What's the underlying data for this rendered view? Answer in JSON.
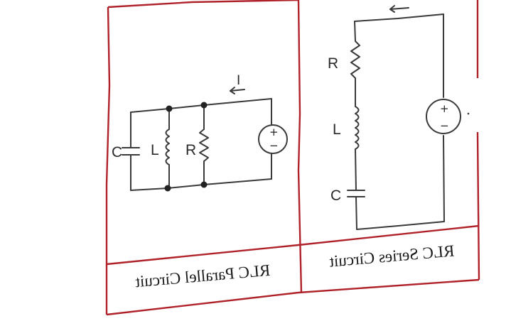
{
  "panels": {
    "left": {
      "caption": "RLC Parallel Circuit",
      "current_label": "I",
      "labels": {
        "capacitor": "C",
        "inductor": "L",
        "resistor": "R"
      }
    },
    "right": {
      "caption": "RLC Series Circuit",
      "labels": {
        "resistor": "R",
        "inductor": "L",
        "capacitor": "C"
      }
    }
  },
  "source": {
    "plus": "+",
    "minus": "−"
  },
  "colors": {
    "border": "#b0222a",
    "wire": "#3a3a3a"
  }
}
